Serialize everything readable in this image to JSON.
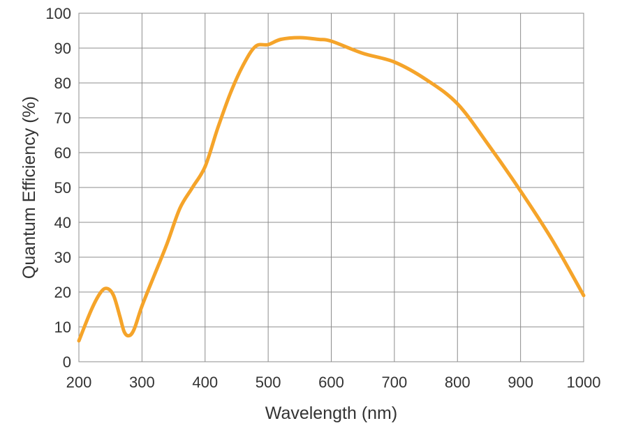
{
  "chart_data": {
    "type": "line",
    "title": "",
    "xlabel": "Wavelength (nm)",
    "ylabel": "Quantum Efficiency (%)",
    "xlim": [
      200,
      1000
    ],
    "ylim": [
      0,
      100
    ],
    "xticks": [
      200,
      300,
      400,
      500,
      600,
      700,
      800,
      900,
      1000
    ],
    "yticks": [
      0,
      10,
      20,
      30,
      40,
      50,
      60,
      70,
      80,
      90,
      100
    ],
    "grid": true,
    "legend": "none",
    "series": [
      {
        "color": "#f5a42a",
        "x": [
          200,
          220,
          235,
          245,
          255,
          265,
          272,
          280,
          288,
          300,
          320,
          340,
          360,
          380,
          400,
          420,
          440,
          460,
          480,
          500,
          520,
          550,
          580,
          600,
          650,
          700,
          750,
          800,
          850,
          900,
          950,
          1000
        ],
        "y": [
          6,
          15,
          20,
          21,
          19,
          13,
          8.5,
          7.5,
          9.5,
          16,
          25,
          34,
          44,
          50,
          56,
          67,
          77,
          85,
          90.5,
          91,
          92.5,
          93,
          92.5,
          92,
          88.5,
          86,
          81,
          74,
          62,
          49,
          35,
          19
        ]
      }
    ]
  }
}
